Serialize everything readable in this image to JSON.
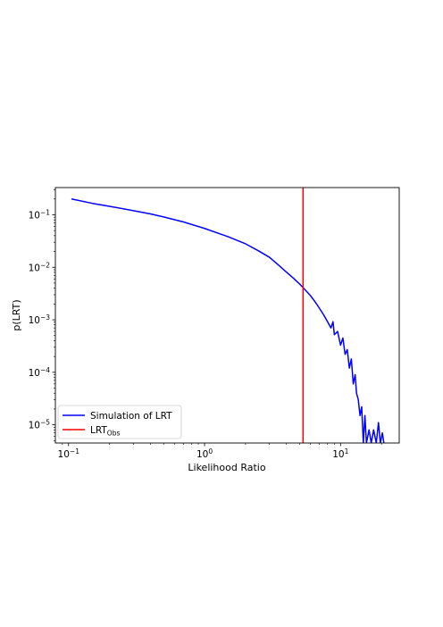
{
  "chart_data": {
    "type": "line",
    "title": "",
    "xlabel": "Likelihood Ratio",
    "ylabel": "p(LRT)",
    "xscale": "log",
    "yscale": "log",
    "xlim": [
      0.08,
      27
    ],
    "ylim": [
      4.5e-06,
      0.33
    ],
    "x_ticks": [
      {
        "value": 0.1,
        "base": "10",
        "exp": "−1"
      },
      {
        "value": 1,
        "base": "10",
        "exp": "0"
      },
      {
        "value": 10,
        "base": "10",
        "exp": "1"
      }
    ],
    "y_ticks": [
      {
        "value": 0.1,
        "base": "10",
        "exp": "−1"
      },
      {
        "value": 0.01,
        "base": "10",
        "exp": "−2"
      },
      {
        "value": 0.001,
        "base": "10",
        "exp": "−3"
      },
      {
        "value": 0.0001,
        "base": "10",
        "exp": "−4"
      },
      {
        "value": 1e-05,
        "base": "10",
        "exp": "−5"
      }
    ],
    "legend_position": "lower-left",
    "grid": false,
    "series": [
      {
        "name": "Simulation of LRT",
        "color": "#0000ff",
        "points": [
          [
            0.105,
            0.2
          ],
          [
            0.15,
            0.165
          ],
          [
            0.2,
            0.145
          ],
          [
            0.3,
            0.12
          ],
          [
            0.4,
            0.104
          ],
          [
            0.5,
            0.091
          ],
          [
            0.7,
            0.073
          ],
          [
            1.0,
            0.055
          ],
          [
            1.5,
            0.038
          ],
          [
            2.0,
            0.028
          ],
          [
            2.5,
            0.0205
          ],
          [
            3.0,
            0.0155
          ],
          [
            3.5,
            0.011
          ],
          [
            4.0,
            0.0081
          ],
          [
            4.5,
            0.0062
          ],
          [
            5.0,
            0.0048
          ],
          [
            5.5,
            0.0037
          ],
          [
            6.0,
            0.0029
          ],
          [
            6.5,
            0.0022
          ],
          [
            7.0,
            0.00165
          ],
          [
            7.5,
            0.00125
          ],
          [
            8.0,
            0.00093
          ],
          [
            8.5,
            0.0007
          ],
          [
            8.8,
            0.00092
          ],
          [
            9.0,
            0.00052
          ],
          [
            9.5,
            0.0006
          ],
          [
            10.0,
            0.00033
          ],
          [
            10.4,
            0.00045
          ],
          [
            10.8,
            0.00022
          ],
          [
            11.2,
            0.00027
          ],
          [
            11.6,
            0.00012
          ],
          [
            12.0,
            0.00018
          ],
          [
            12.4,
            6e-05
          ],
          [
            12.8,
            9e-05
          ],
          [
            13.1,
            4e-05
          ],
          [
            13.5,
            3e-05
          ],
          [
            13.9,
            1.5e-05
          ],
          [
            14.3,
            2.2e-05
          ],
          [
            14.7,
            4.5e-06
          ],
          [
            15.1,
            1.5e-05
          ],
          [
            15.5,
            4.5e-06
          ],
          [
            16.2,
            8e-06
          ],
          [
            16.8,
            4.5e-06
          ],
          [
            17.5,
            8e-06
          ],
          [
            18.3,
            4.5e-06
          ],
          [
            19.0,
            1.1e-05
          ],
          [
            19.6,
            4.5e-06
          ],
          [
            20.3,
            7e-06
          ],
          [
            20.8,
            4.5e-06
          ]
        ]
      },
      {
        "name": "LRT",
        "name_sub": "Obs",
        "color": "#ff0000",
        "type": "vline",
        "x": 5.3
      }
    ]
  }
}
